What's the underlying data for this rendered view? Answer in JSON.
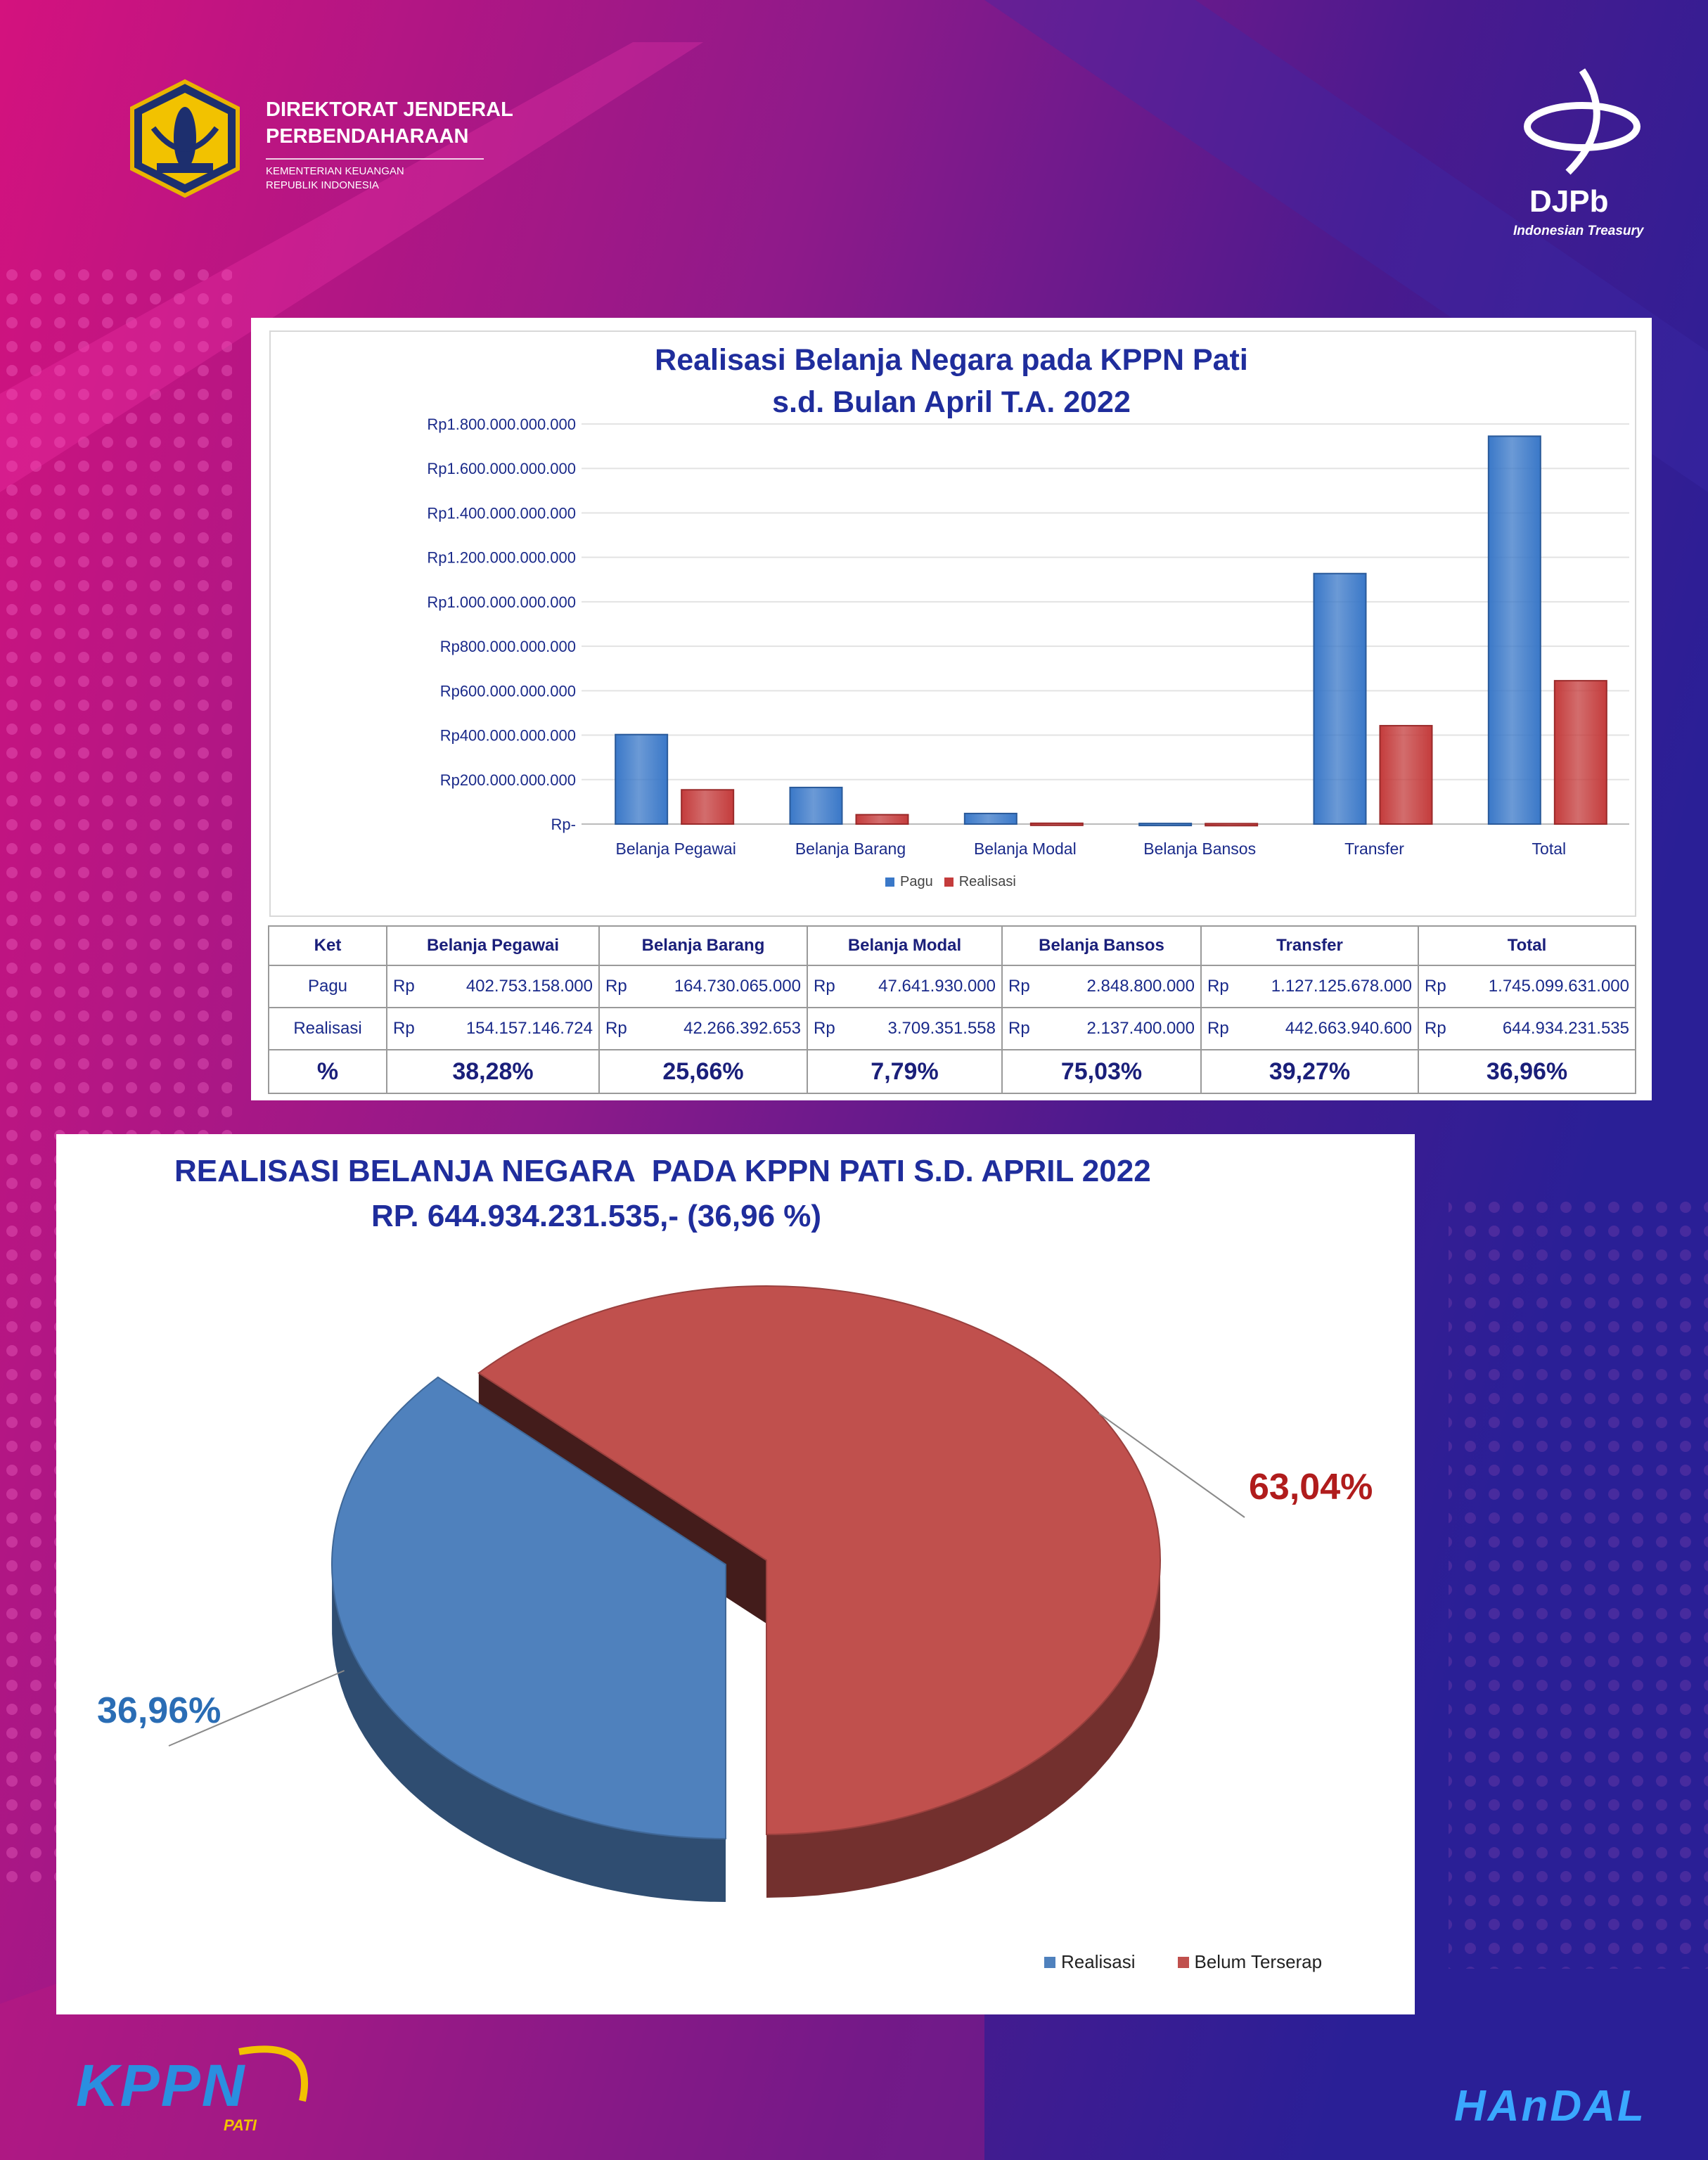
{
  "header": {
    "org_line1": "DIREKTORAT JENDERAL",
    "org_line2": "PERBENDAHARAAN",
    "ministry_line1": "KEMENTERIAN KEUANGAN",
    "ministry_line2": "REPUBLIK INDONESIA",
    "djpb_logo_text": "DJPb",
    "djpb_logo_sub": "Indonesian Treasury"
  },
  "footer": {
    "kppn_logo_text": "KPPN",
    "kppn_logo_sub": "PATI",
    "handal_logo_text": "HAnDAL"
  },
  "colors": {
    "pagu": "#3a78c8",
    "realisasi": "#c43c3c",
    "title": "#1f2d9c"
  },
  "chart_data": [
    {
      "type": "bar",
      "title_line1": "Realisasi Belanja Negara pada KPPN Pati",
      "title_line2": "s.d. Bulan April T.A. 2022",
      "categories": [
        "Belanja Pegawai",
        "Belanja Barang",
        "Belanja Modal",
        "Belanja Bansos",
        "Transfer",
        "Total"
      ],
      "series": [
        {
          "name": "Pagu",
          "values": [
            402753158000,
            164730065000,
            47641930000,
            2848800000,
            1127125678000,
            1745099631000
          ]
        },
        {
          "name": "Realisasi",
          "values": [
            154157146724,
            42266392653,
            3709351558,
            2137400000,
            442663940600,
            644934231535
          ]
        }
      ],
      "ylim": [
        0,
        1800000000000
      ],
      "yticks": [
        "Rp-",
        "Rp200.000.000.000",
        "Rp400.000.000.000",
        "Rp600.000.000.000",
        "Rp800.000.000.000",
        "Rp1.000.000.000.000",
        "Rp1.200.000.000.000",
        "Rp1.400.000.000.000",
        "Rp1.600.000.000.000",
        "Rp1.800.000.000.000"
      ],
      "grid": true,
      "legend": "bottom"
    },
    {
      "type": "table",
      "columns": [
        "Ket",
        "Belanja Pegawai",
        "Belanja Barang",
        "Belanja Modal",
        "Belanja Bansos",
        "Transfer",
        "Total"
      ],
      "currency": "Rp",
      "rows": [
        {
          "label": "Pagu",
          "values": [
            "402.753.158.000",
            "164.730.065.000",
            "47.641.930.000",
            "2.848.800.000",
            "1.127.125.678.000",
            "1.745.099.631.000"
          ]
        },
        {
          "label": "Realisasi",
          "values": [
            "154.157.146.724",
            "42.266.392.653",
            "3.709.351.558",
            "2.137.400.000",
            "442.663.940.600",
            "644.934.231.535"
          ]
        },
        {
          "label": "%",
          "values": [
            "38,28%",
            "25,66%",
            "7,79%",
            "75,03%",
            "39,27%",
            "36,96%"
          ]
        }
      ]
    },
    {
      "type": "pie",
      "title_line1": "REALISASI BELANJA NEGARA  PADA KPPN PATI S.D. APRIL 2022",
      "title_line2": "RP. 644.934.231.535,- (36,96 %)",
      "slices": [
        {
          "name": "Realisasi",
          "value": 36.96,
          "label": "36,96%",
          "color": "#4f81bd"
        },
        {
          "name": "Belum Terserap",
          "value": 63.04,
          "label": "63,04%",
          "color": "#c0504d"
        }
      ],
      "legend": "bottom-right"
    }
  ]
}
